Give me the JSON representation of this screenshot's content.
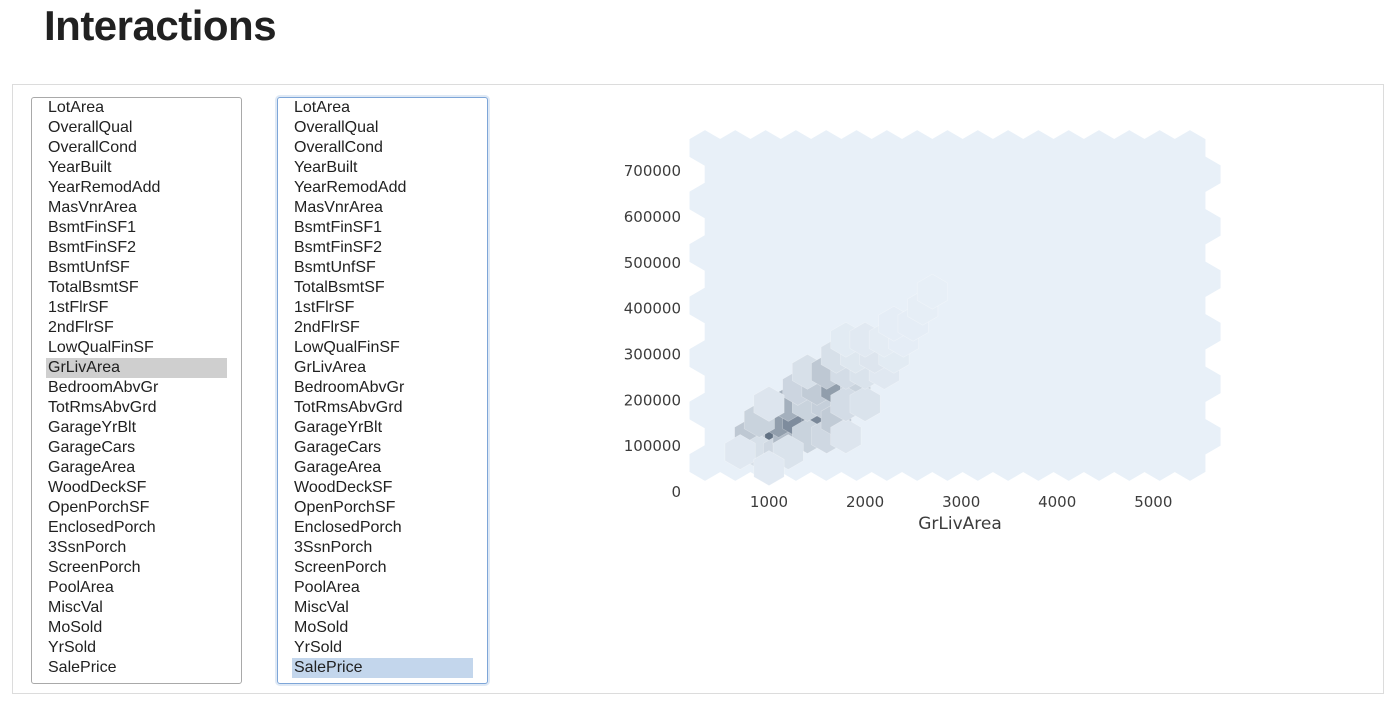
{
  "page": {
    "title": "Interactions"
  },
  "x_select": {
    "options": [
      "LotArea",
      "OverallQual",
      "OverallCond",
      "YearBuilt",
      "YearRemodAdd",
      "MasVnrArea",
      "BsmtFinSF1",
      "BsmtFinSF2",
      "BsmtUnfSF",
      "TotalBsmtSF",
      "1stFlrSF",
      "2ndFlrSF",
      "LowQualFinSF",
      "GrLivArea",
      "BedroomAbvGr",
      "TotRmsAbvGrd",
      "GarageYrBlt",
      "GarageCars",
      "GarageArea",
      "WoodDeckSF",
      "OpenPorchSF",
      "EnclosedPorch",
      "3SsnPorch",
      "ScreenPorch",
      "PoolArea",
      "MiscVal",
      "MoSold",
      "YrSold",
      "SalePrice"
    ],
    "selected": "GrLivArea"
  },
  "y_select": {
    "options": [
      "LotArea",
      "OverallQual",
      "OverallCond",
      "YearBuilt",
      "YearRemodAdd",
      "MasVnrArea",
      "BsmtFinSF1",
      "BsmtFinSF2",
      "BsmtUnfSF",
      "TotalBsmtSF",
      "1stFlrSF",
      "2ndFlrSF",
      "LowQualFinSF",
      "GrLivArea",
      "BedroomAbvGr",
      "TotRmsAbvGrd",
      "GarageYrBlt",
      "GarageCars",
      "GarageArea",
      "WoodDeckSF",
      "OpenPorchSF",
      "EnclosedPorch",
      "3SsnPorch",
      "ScreenPorch",
      "PoolArea",
      "MiscVal",
      "MoSold",
      "YrSold",
      "SalePrice"
    ],
    "selected": "SalePrice"
  },
  "chart_data": {
    "type": "heatmap",
    "kind": "hexbin",
    "xlabel": "GrLivArea",
    "ylabel": "",
    "xticks": [
      1000,
      2000,
      3000,
      4000,
      5000
    ],
    "yticks": [
      0,
      100000,
      200000,
      300000,
      400000,
      500000,
      600000,
      700000
    ],
    "xlim": [
      334,
      5642
    ],
    "ylim": [
      34900,
      755000
    ],
    "grid": false,
    "colors": {
      "base": "#e8f0f8",
      "dark": "#5b6b7e"
    },
    "cells": [
      {
        "x": 1000,
        "y": 120000,
        "count": 0.95
      },
      {
        "x": 800,
        "y": 120000,
        "count": 0.3
      },
      {
        "x": 900,
        "y": 85000,
        "count": 0.12
      },
      {
        "x": 1100,
        "y": 85000,
        "count": 0.18
      },
      {
        "x": 1200,
        "y": 120000,
        "count": 0.4
      },
      {
        "x": 1100,
        "y": 155000,
        "count": 0.62
      },
      {
        "x": 900,
        "y": 155000,
        "count": 0.22
      },
      {
        "x": 1300,
        "y": 155000,
        "count": 0.75
      },
      {
        "x": 1500,
        "y": 155000,
        "count": 0.78
      },
      {
        "x": 1400,
        "y": 120000,
        "count": 0.22
      },
      {
        "x": 1600,
        "y": 120000,
        "count": 0.18
      },
      {
        "x": 1200,
        "y": 190000,
        "count": 0.48
      },
      {
        "x": 1400,
        "y": 190000,
        "count": 0.22
      },
      {
        "x": 1600,
        "y": 190000,
        "count": 0.25
      },
      {
        "x": 1700,
        "y": 155000,
        "count": 0.28
      },
      {
        "x": 1800,
        "y": 120000,
        "count": 0.08
      },
      {
        "x": 1300,
        "y": 225000,
        "count": 0.2
      },
      {
        "x": 1500,
        "y": 225000,
        "count": 0.28
      },
      {
        "x": 1700,
        "y": 225000,
        "count": 0.62
      },
      {
        "x": 1900,
        "y": 225000,
        "count": 0.22
      },
      {
        "x": 1800,
        "y": 190000,
        "count": 0.15
      },
      {
        "x": 2000,
        "y": 190000,
        "count": 0.1
      },
      {
        "x": 1400,
        "y": 260000,
        "count": 0.12
      },
      {
        "x": 1600,
        "y": 260000,
        "count": 0.3
      },
      {
        "x": 1800,
        "y": 260000,
        "count": 0.15
      },
      {
        "x": 2000,
        "y": 260000,
        "count": 0.1
      },
      {
        "x": 2200,
        "y": 260000,
        "count": 0.06
      },
      {
        "x": 1700,
        "y": 295000,
        "count": 0.12
      },
      {
        "x": 1900,
        "y": 295000,
        "count": 0.07
      },
      {
        "x": 2100,
        "y": 295000,
        "count": 0.08
      },
      {
        "x": 2300,
        "y": 295000,
        "count": 0.04
      },
      {
        "x": 1800,
        "y": 330000,
        "count": 0.04
      },
      {
        "x": 2000,
        "y": 330000,
        "count": 0.05
      },
      {
        "x": 2200,
        "y": 330000,
        "count": 0.03
      },
      {
        "x": 2400,
        "y": 330000,
        "count": 0.02
      },
      {
        "x": 2300,
        "y": 365000,
        "count": 0.02
      },
      {
        "x": 2500,
        "y": 365000,
        "count": 0.02
      },
      {
        "x": 2600,
        "y": 400000,
        "count": 0.015
      },
      {
        "x": 2700,
        "y": 435000,
        "count": 0.01
      },
      {
        "x": 1200,
        "y": 85000,
        "count": 0.1
      },
      {
        "x": 700,
        "y": 85000,
        "count": 0.06
      },
      {
        "x": 1000,
        "y": 50000,
        "count": 0.05
      },
      {
        "x": 1000,
        "y": 190000,
        "count": 0.08
      }
    ]
  }
}
